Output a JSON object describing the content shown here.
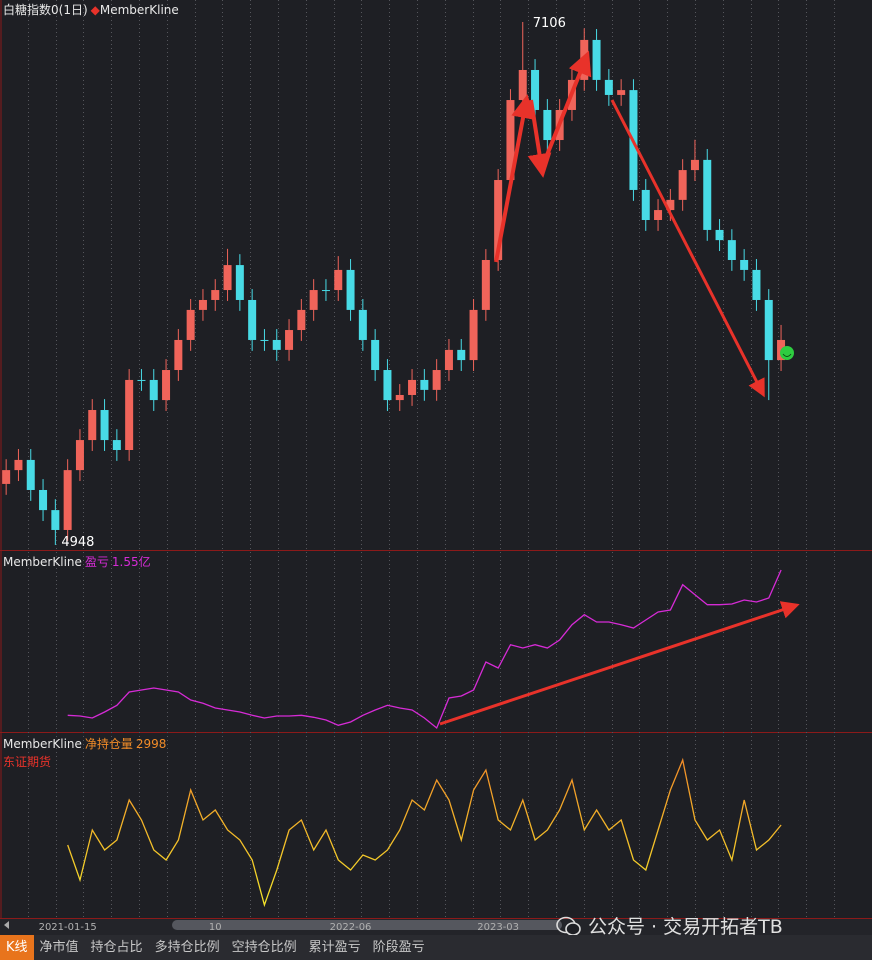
{
  "chart_data": [
    {
      "type": "candlestick",
      "title": "白糖指数0(1日)",
      "legend": "MemberKline",
      "up_color": "#f0645a",
      "down_color": "#48dbe6",
      "categories": [
        null,
        null,
        null,
        null,
        null,
        "2021-01-15",
        null,
        null,
        null,
        null,
        null,
        null,
        null,
        null,
        null,
        null,
        null,
        "10",
        null,
        null,
        null,
        null,
        null,
        null,
        null,
        null,
        null,
        null,
        "2022-06",
        null,
        null,
        null,
        null,
        null,
        null,
        null,
        null,
        null,
        null,
        null,
        "2023-03",
        null,
        null,
        null,
        null,
        null,
        null,
        null,
        null,
        null,
        null,
        null,
        null,
        null,
        null,
        null,
        null,
        null,
        null,
        null,
        null,
        null,
        null,
        null
      ],
      "open": [
        5200,
        5257,
        5299,
        5175,
        5092,
        5010,
        5257,
        5381,
        5505,
        5381,
        5340,
        5629,
        5629,
        5546,
        5670,
        5794,
        5918,
        5959,
        6000,
        6103,
        5959,
        5794,
        5794,
        5753,
        5835,
        5918,
        6000,
        6000,
        6083,
        5918,
        5794,
        5670,
        5546,
        5567,
        5629,
        5588,
        5670,
        5753,
        5711,
        5918,
        6124,
        6454,
        6784,
        6908,
        6743,
        6619,
        6743,
        6867,
        7032,
        6867,
        6805,
        6825,
        6413,
        6289,
        6330,
        6372,
        6495,
        6537,
        6248,
        6206,
        6124,
        6083,
        5959,
        5711
      ],
      "high": [
        5302,
        5344,
        5344,
        5220,
        5137,
        5302,
        5426,
        5550,
        5550,
        5426,
        5674,
        5674,
        5674,
        5715,
        5839,
        5963,
        6004,
        6045,
        6170,
        6148,
        6004,
        5839,
        5839,
        5880,
        5963,
        6045,
        6045,
        6140,
        6128,
        5963,
        5839,
        5715,
        5612,
        5674,
        5674,
        5715,
        5798,
        5798,
        5963,
        6169,
        6499,
        6829,
        7106,
        6953,
        6788,
        6788,
        6912,
        7080,
        7077,
        6912,
        6870,
        6870,
        6458,
        6375,
        6417,
        6540,
        6620,
        6582,
        6293,
        6251,
        6169,
        6128,
        6004,
        5856
      ],
      "low": [
        5155,
        5212,
        5130,
        5047,
        4948,
        4965,
        5212,
        5336,
        5336,
        5295,
        5295,
        5584,
        5501,
        5501,
        5625,
        5749,
        5873,
        5914,
        5955,
        5914,
        5749,
        5749,
        5708,
        5708,
        5790,
        5873,
        5955,
        5955,
        5873,
        5749,
        5625,
        5501,
        5501,
        5522,
        5543,
        5543,
        5625,
        5666,
        5666,
        5873,
        6079,
        6409,
        6739,
        6698,
        6574,
        6574,
        6698,
        6822,
        6822,
        6760,
        6760,
        6368,
        6244,
        6244,
        6285,
        6327,
        6450,
        6203,
        6161,
        6079,
        6038,
        5914,
        5546,
        5666
      ],
      "close": [
        5257,
        5299,
        5175,
        5092,
        5010,
        5257,
        5381,
        5505,
        5381,
        5340,
        5629,
        5629,
        5546,
        5670,
        5794,
        5918,
        5959,
        6000,
        6103,
        5959,
        5794,
        5794,
        5753,
        5835,
        5918,
        6000,
        6000,
        6083,
        5918,
        5794,
        5670,
        5546,
        5567,
        5629,
        5588,
        5670,
        5753,
        5711,
        5918,
        6124,
        6454,
        6784,
        6908,
        6743,
        6619,
        6743,
        6867,
        7032,
        6867,
        6805,
        6825,
        6413,
        6289,
        6330,
        6372,
        6495,
        6537,
        6248,
        6206,
        6124,
        6083,
        5959,
        5711,
        5794
      ]
    },
    {
      "type": "line",
      "title": "MemberKline",
      "series": [
        {
          "name": "盈亏",
          "color": "#d62bd6",
          "values": [
            null,
            null,
            null,
            null,
            null,
            -0.63,
            -0.64,
            -0.67,
            -0.58,
            -0.48,
            -0.28,
            -0.25,
            -0.22,
            -0.25,
            -0.28,
            -0.4,
            -0.45,
            -0.52,
            -0.55,
            -0.58,
            -0.63,
            -0.67,
            -0.64,
            -0.64,
            -0.63,
            -0.66,
            -0.7,
            -0.78,
            -0.73,
            -0.63,
            -0.55,
            -0.48,
            -0.52,
            -0.55,
            -0.67,
            -0.82,
            -0.37,
            -0.34,
            -0.25,
            0.17,
            0.08,
            0.43,
            0.38,
            0.43,
            0.38,
            0.5,
            0.73,
            0.88,
            0.77,
            0.77,
            0.73,
            0.68,
            0.8,
            0.92,
            0.95,
            1.33,
            1.18,
            1.03,
            1.03,
            1.04,
            1.1,
            1.07,
            1.13,
            1.55
          ],
          "value_labels": [
            null,
            null,
            null,
            null,
            null,
            null,
            null,
            null,
            null,
            null,
            null,
            null,
            null,
            null,
            null,
            null,
            null,
            null,
            null,
            null,
            null,
            null,
            null,
            null,
            null,
            null,
            null,
            null,
            null,
            null,
            null,
            null,
            null,
            null,
            null,
            null,
            null,
            null,
            null,
            null,
            null,
            null,
            null,
            null,
            null,
            null,
            null,
            null,
            null,
            null,
            null,
            null,
            null,
            null,
            null,
            null,
            null,
            null,
            null,
            null,
            null,
            null,
            null,
            "1.55亿"
          ]
        }
      ]
    },
    {
      "type": "line",
      "title": "MemberKline",
      "subtitle": "东证期货",
      "series": [
        {
          "name": "净持仓量",
          "color": "#f28c28",
          "color_low": "#f5e62a",
          "values": [
            null,
            null,
            null,
            null,
            null,
            1798,
            -302,
            2698,
            1498,
            2098,
            4498,
            3298,
            1498,
            898,
            2098,
            5098,
            3298,
            3898,
            2698,
            2098,
            898,
            -1802,
            298,
            2698,
            3298,
            1498,
            2698,
            898,
            298,
            1198,
            898,
            1498,
            2698,
            4498,
            3898,
            5698,
            4498,
            2098,
            5098,
            6298,
            3298,
            2698,
            4498,
            2098,
            2698,
            3898,
            5698,
            2698,
            3898,
            2698,
            3298,
            898,
            298,
            2698,
            5098,
            6898,
            3298,
            2098,
            2698,
            898,
            4498,
            1498,
            2098,
            2998
          ]
        }
      ]
    }
  ],
  "watermark": "公众号 · 交易开拓者TB",
  "tabs": [
    "K线",
    "净市值",
    "持仓占比",
    "多持仓比例",
    "空持仓比例",
    "累计盈亏",
    "阶段盈亏"
  ]
}
